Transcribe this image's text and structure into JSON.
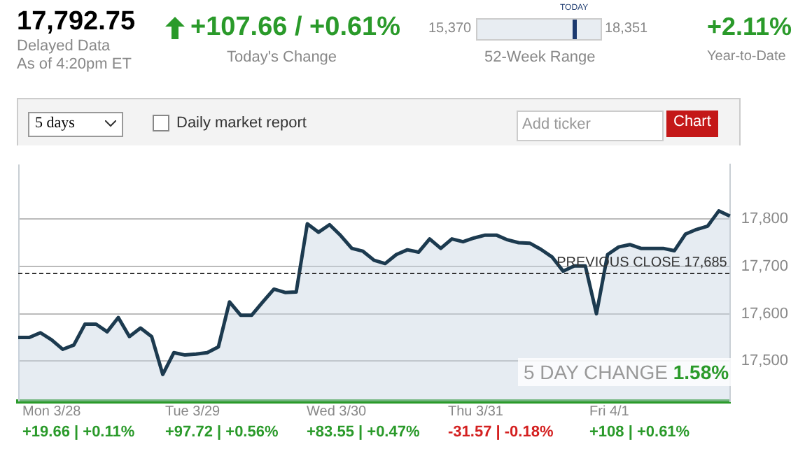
{
  "chart_data": {
    "type": "area",
    "categories": [
      null,
      null,
      null,
      null,
      null,
      null,
      null,
      null,
      null,
      null,
      null,
      null,
      null,
      null,
      null,
      null,
      null,
      null,
      null,
      null,
      null,
      null,
      null,
      null,
      null,
      null,
      null,
      null,
      null,
      null,
      null,
      null,
      null,
      null,
      null,
      null,
      null,
      null,
      null,
      null,
      null,
      null,
      null,
      null,
      null,
      null,
      null,
      null,
      null,
      null,
      null,
      null,
      null,
      null,
      null,
      null,
      null,
      null,
      null,
      null,
      null,
      null,
      null,
      null,
      null
    ],
    "ylim": [
      17415,
      17915
    ],
    "yticks": [
      {
        "value": 17500,
        "label": "17,500"
      },
      {
        "value": 17600,
        "label": "17,600"
      },
      {
        "value": 17700,
        "label": "17,700"
      },
      {
        "value": 17800,
        "label": "17,800"
      }
    ],
    "tick_labels": "y",
    "grid": "y",
    "legend": false,
    "series": [
      {
        "color": "#1c3a4f",
        "values": [
          17550,
          17550,
          17560,
          17545,
          17525,
          17534,
          17578,
          17578,
          17562,
          17592,
          17552,
          17570,
          17552,
          17472,
          17518,
          17513,
          17515,
          17518,
          17530,
          17625,
          17597,
          17597,
          17625,
          17652,
          17645,
          17646,
          17790,
          17772,
          17788,
          17765,
          17738,
          17732,
          17713,
          17706,
          17725,
          17735,
          17730,
          17758,
          17738,
          17758,
          17752,
          17760,
          17766,
          17766,
          17756,
          17750,
          17749,
          17736,
          17720,
          17690,
          17701,
          17701,
          17600,
          17725,
          17741,
          17746,
          17738,
          17738,
          17738,
          17733,
          17768,
          17778,
          17785,
          17817,
          17806
        ]
      }
    ],
    "ref_lines": [
      {
        "axis": "y",
        "value": 17685,
        "label": "PREVIOUS CLOSE 17,685",
        "line_style": "dashed",
        "color": "#333333"
      }
    ],
    "annotations": [
      "17,792.75",
      "Delayed Data",
      "As of 4:20pm ET",
      "+107.66 / +0.61%",
      "Today's Change",
      "15,370",
      "18,351",
      "TODAY",
      "52-Week Range",
      "+2.11%",
      "Year-to-Date",
      "5 days",
      "Daily market report",
      "Add ticker",
      "Chart",
      "5 DAY CHANGE 1.58%",
      "Mon 3/28",
      "+19.66 | +0.11%",
      "Tue 3/29",
      "+97.72 | +0.56%",
      "Wed 3/30",
      "+83.55 | +0.47%",
      "Thu 3/31",
      "-31.57 | -0.18%",
      "Fri 4/1",
      "+108 | +0.61%"
    ]
  }
}
